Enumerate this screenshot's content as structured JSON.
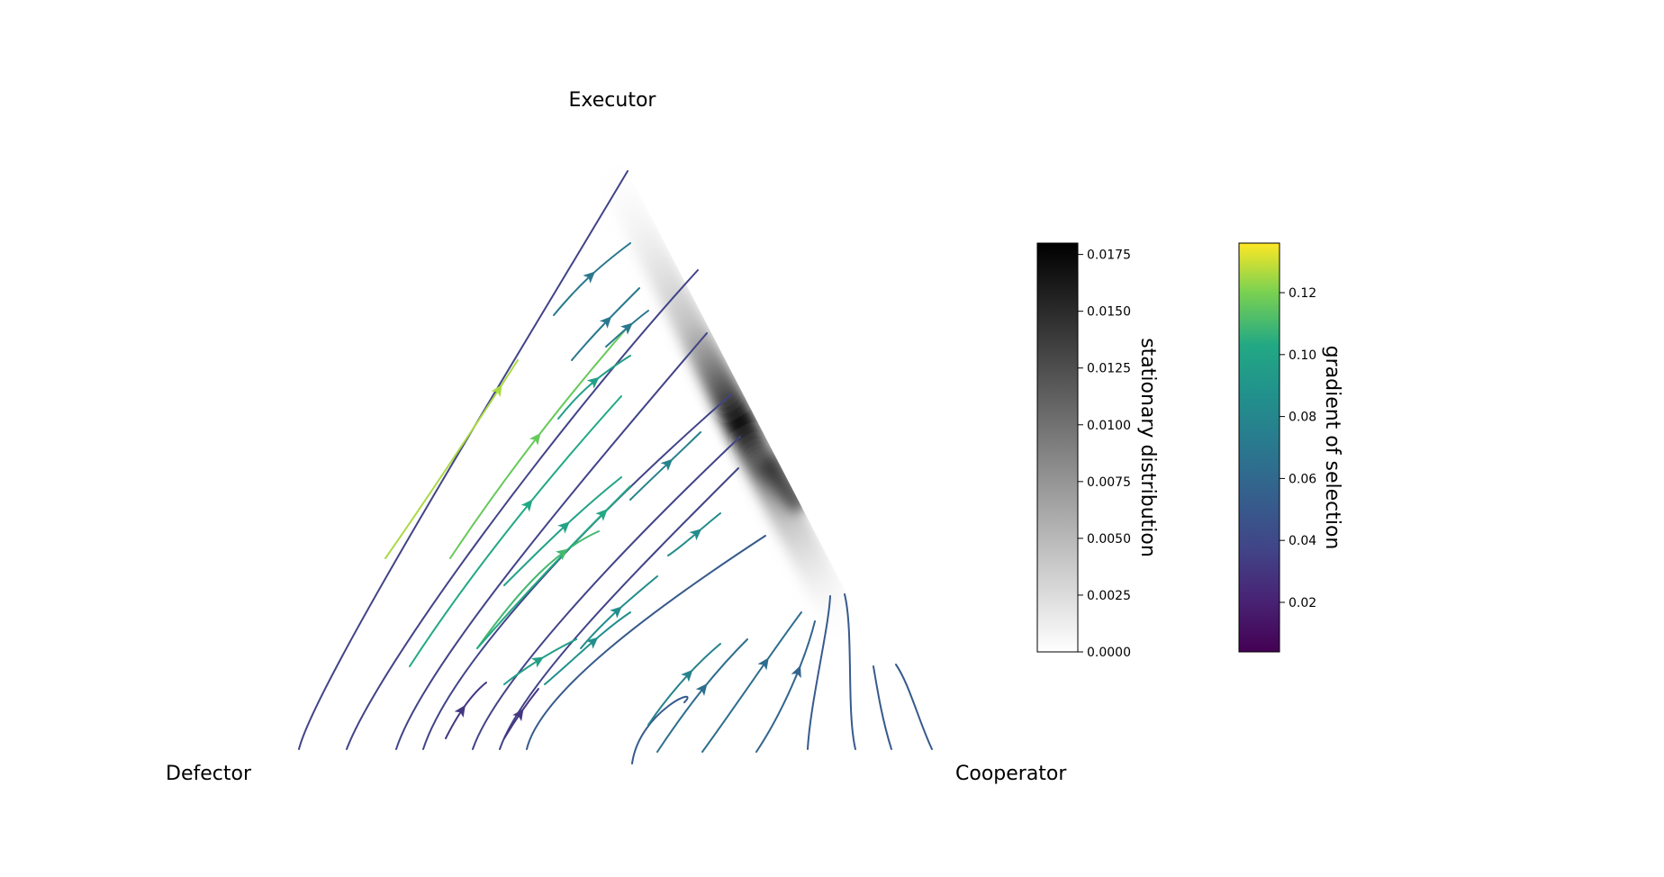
{
  "chart_data": {
    "type": "ternary-streamplot",
    "vertices": {
      "top": "Executor",
      "left": "Defector",
      "right": "Cooperator"
    },
    "density_colorbar": {
      "label": "stationary distribution",
      "colormap": "grays",
      "range": [
        0,
        0.018
      ],
      "ticks": [
        "0.0000",
        "0.0025",
        "0.0050",
        "0.0075",
        "0.0100",
        "0.0125",
        "0.0150",
        "0.0175"
      ]
    },
    "gradient_colorbar": {
      "label": "gradient of selection",
      "colormap": "viridis",
      "range": [
        0.004,
        0.136
      ],
      "ticks": [
        "0.02",
        "0.04",
        "0.06",
        "0.08",
        "0.10",
        "0.12"
      ]
    }
  }
}
